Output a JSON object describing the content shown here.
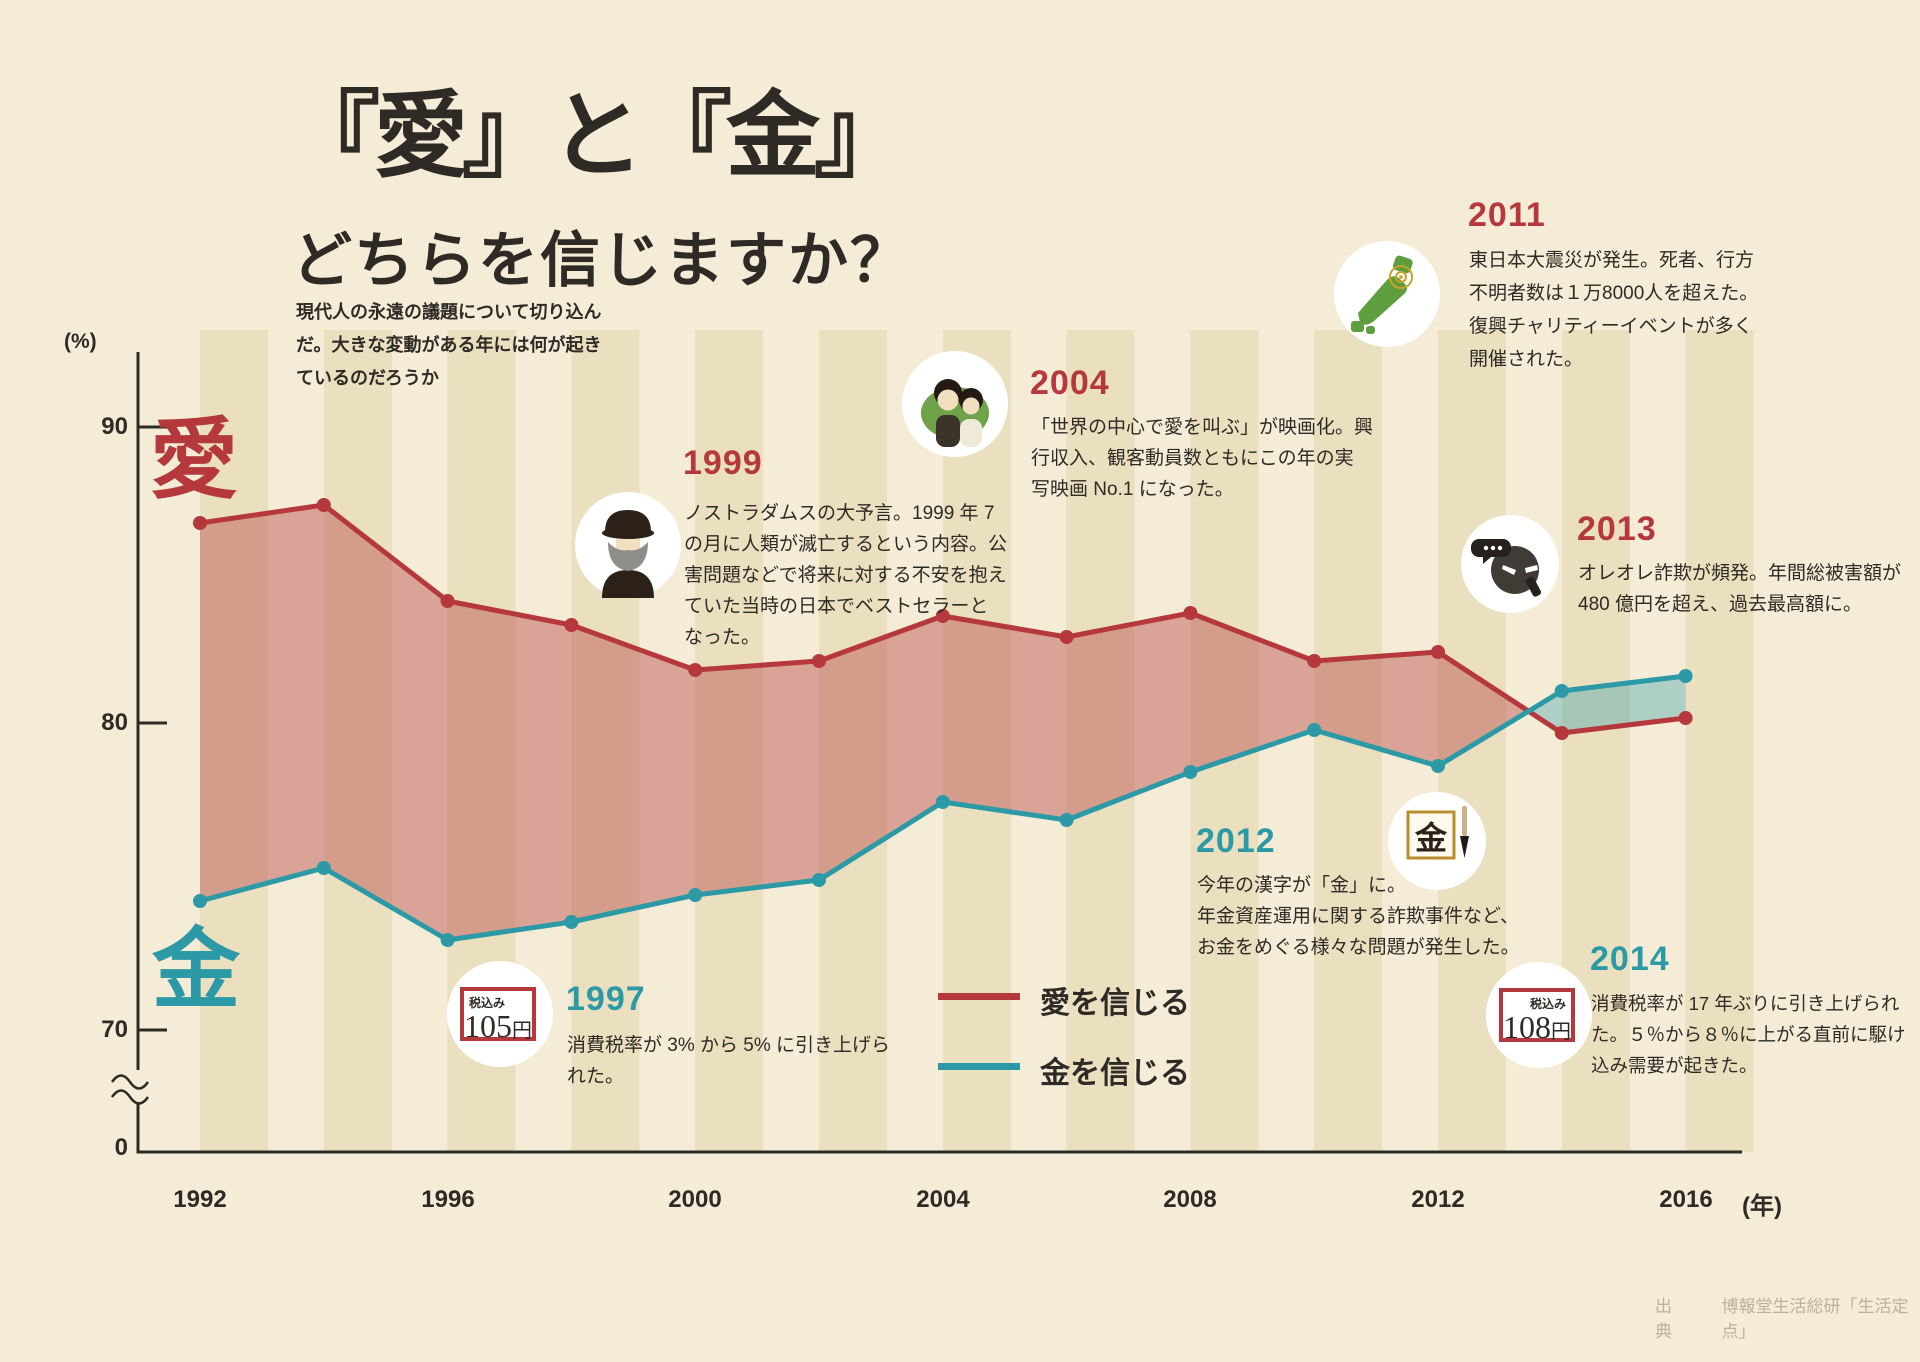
{
  "title": {
    "line1": "『愛』と『金』",
    "line2": "どちらを信じますか？"
  },
  "intro": "現代人の永遠の議題について切り込ん\nだ。大きな変動がある年には何が起き\nているのだろうか",
  "y_axis": {
    "unit": "(%)",
    "ticks": [
      "90",
      "80",
      "70"
    ],
    "zero": "0"
  },
  "x_axis": {
    "ticks": [
      "1992",
      "1996",
      "2000",
      "2004",
      "2008",
      "2012",
      "2016"
    ],
    "unit": "(年)"
  },
  "series_kanji": {
    "love": "愛",
    "money": "金"
  },
  "legend": {
    "love": "愛を信じる",
    "money": "金を信じる"
  },
  "annotations": {
    "y1999": {
      "year": "1999",
      "icon": "nostradamus",
      "text": "ノストラダムスの大予言。1999 年 7\nの月に人類が滅亡するという内容。公\n害問題などで将来に対する不安を抱え\nていた当時の日本でベストセラーと\nなった。"
    },
    "y2004": {
      "year": "2004",
      "icon": "movie-couple",
      "text": "「世界の中心で愛を叫ぶ」が映画化。興\n行収入、観客動員数ともにこの年の実\n写映画 No.1 になった。"
    },
    "y2011": {
      "year": "2011",
      "icon": "japan-earthquake",
      "text": "東日本大震災が発生。死者、行方\n不明者数は１万8000人を超えた。\n復興チャリティーイベントが多く\n開催された。"
    },
    "y2013": {
      "year": "2013",
      "icon": "phone-scam",
      "text": "オレオレ詐欺が頻発。年間総被害額が\n480 億円を超え、過去最高額に。"
    },
    "y2012": {
      "year": "2012",
      "icon": "kanji-of-the-year",
      "text": "今年の漢字が「金」に。\n年金資産運用に関する詐欺事件など、\nお金をめぐる様々な問題が発生した。"
    },
    "y1997": {
      "year": "1997",
      "icon": "price-105",
      "text": "消費税率が 3% から 5% に引き上げら\nれた。"
    },
    "y2014": {
      "year": "2014",
      "icon": "price-108",
      "text": "消費税率が 17 年ぶりに引き上げられ\nた。５％から８％に上がる直前に駆け\n込み需要が起きた。"
    }
  },
  "badges": {
    "b1997": {
      "tax": "税込み",
      "price": "105",
      "unit": "円"
    },
    "b2014": {
      "tax": "税込み",
      "price": "108",
      "unit": "円"
    }
  },
  "icons": {
    "kanji_in_frame": "金"
  },
  "source": {
    "label": "出典",
    "text": "博報堂生活総研「生活定点」"
  },
  "colors": {
    "love": "#b5383d",
    "money": "#2b9aa6",
    "fill_love": "rgba(181,56,61,0.40)",
    "fill_money": "rgba(43,154,166,0.35)",
    "background": "#f4ecd6",
    "stripe": "#eadfbf"
  },
  "chart_data": {
    "type": "line",
    "title": "『愛』と『金』どちらを信じますか？",
    "x": [
      1992,
      1994,
      1996,
      1998,
      2000,
      2002,
      2004,
      2006,
      2008,
      2010,
      2012,
      2014,
      2016
    ],
    "series": [
      {
        "name": "愛を信じる",
        "color": "#b5383d",
        "values": [
          86.8,
          87.4,
          84.2,
          83.4,
          81.9,
          82.2,
          83.7,
          83.0,
          83.8,
          82.2,
          82.5,
          79.8,
          80.3
        ]
      },
      {
        "name": "金を信じる",
        "color": "#2b9aa6",
        "values": [
          74.2,
          75.3,
          72.9,
          73.5,
          74.4,
          74.9,
          77.5,
          76.9,
          78.5,
          79.9,
          78.7,
          81.2,
          81.7
        ]
      }
    ],
    "ylabel": "(%)",
    "xlabel": "(年)",
    "y_ticks": [
      90,
      80,
      70
    ],
    "y_axis_break_to_zero": true,
    "x_tick_labels": [
      1992,
      1996,
      2000,
      2004,
      2008,
      2012,
      2016
    ],
    "fill_between": {
      "love_above_color": "rgba(181,56,61,0.40)",
      "money_above_color": "rgba(43,154,166,0.35)"
    },
    "legend_position": "bottom-center",
    "grid": false
  }
}
